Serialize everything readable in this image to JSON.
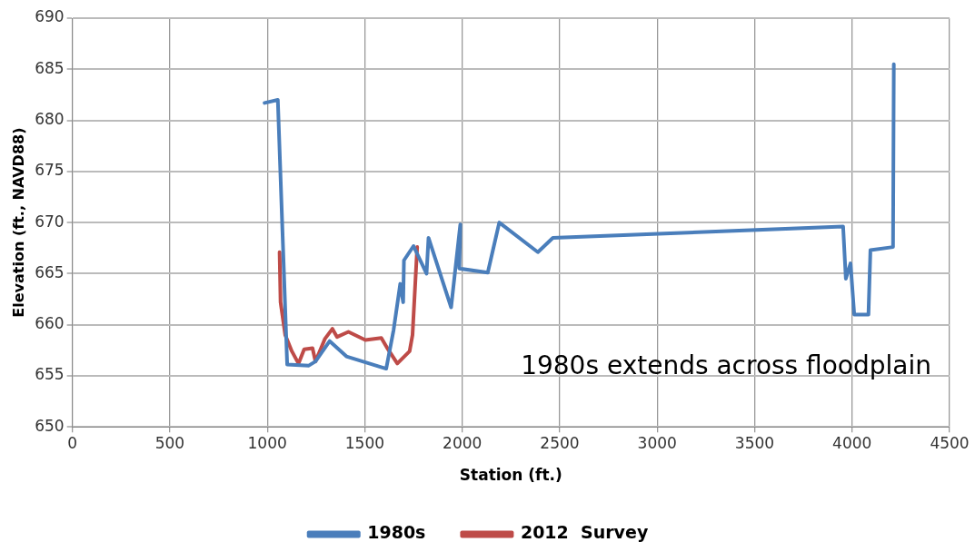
{
  "chart_data": {
    "type": "line",
    "xlabel": "Station (ft.)",
    "ylabel": "Elevation (ft., NAVD88)",
    "xlim": [
      0,
      4500
    ],
    "xticks": [
      0,
      500,
      1000,
      1500,
      2000,
      2500,
      3000,
      3500,
      4000,
      4500
    ],
    "ylim": [
      650,
      690
    ],
    "yticks": [
      650,
      655,
      660,
      665,
      670,
      675,
      680,
      685,
      690
    ],
    "grid": true,
    "legend": "bottom",
    "marker": "none",
    "line_style": "solid",
    "annotations": [
      "1980s extends across floodplain"
    ],
    "series": [
      {
        "name": "1980s",
        "color": "#4a7ebb",
        "x": [
          986,
          1054,
          1102,
          1213,
          1247,
          1320,
          1406,
          1610,
          1648,
          1682,
          1697,
          1701,
          1750,
          1817,
          1827,
          1943,
          1990,
          1985,
          2131,
          2190,
          2388,
          2465,
          3954,
          3968,
          3992,
          4011,
          4084,
          4094,
          4210,
          4214
        ],
        "values": [
          681.7,
          682,
          656.1,
          656,
          656.4,
          658.4,
          656.9,
          655.7,
          659.5,
          664,
          662.2,
          666.3,
          667.7,
          665,
          668.5,
          661.7,
          669.8,
          665.5,
          665.1,
          670,
          667.1,
          668.5,
          669.6,
          664.5,
          666,
          661,
          661,
          667.3,
          667.6,
          685.5
        ]
      },
      {
        "name": "2012  Survey",
        "color": "#be4b48",
        "x": [
          1063,
          1068,
          1092,
          1126,
          1160,
          1189,
          1232,
          1247,
          1295,
          1334,
          1358,
          1416,
          1503,
          1585,
          1619,
          1667,
          1730,
          1745,
          1769
        ],
        "values": [
          667.1,
          662.2,
          659,
          657.4,
          656.2,
          657.6,
          657.7,
          656.4,
          658.6,
          659.6,
          658.8,
          659.3,
          658.5,
          658.7,
          657.6,
          656.2,
          657.4,
          659,
          667.6
        ]
      }
    ]
  }
}
